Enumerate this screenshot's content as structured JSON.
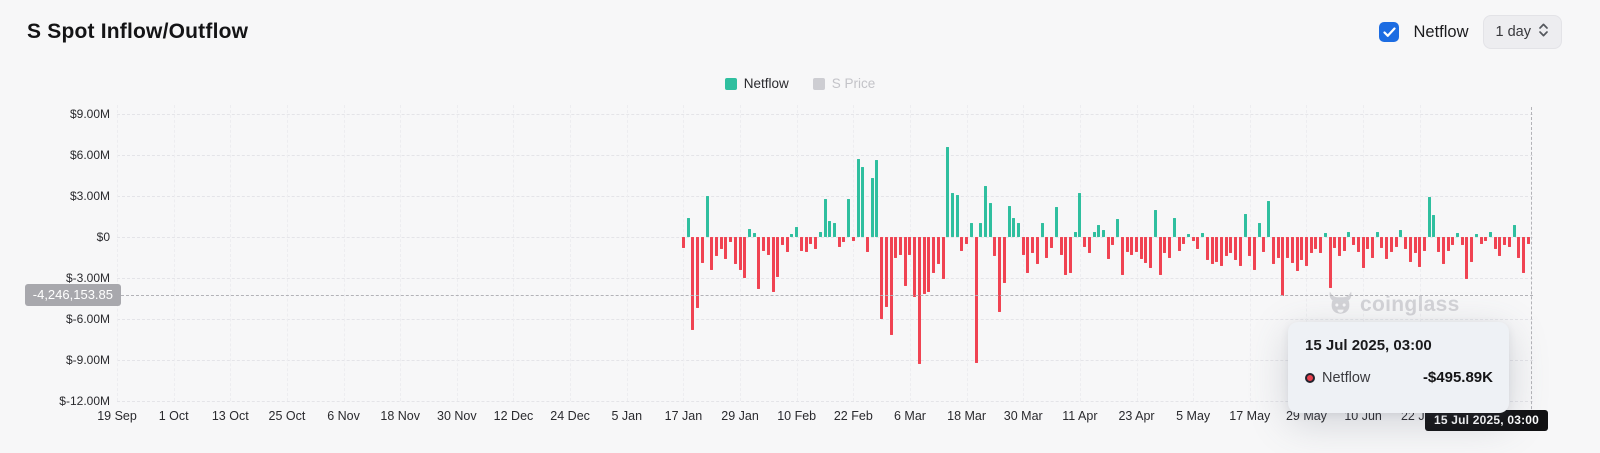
{
  "header": {
    "title": "S Spot Inflow/Outflow",
    "checkbox_label": "Netflow",
    "interval_label": "1 day"
  },
  "legend": {
    "items": [
      {
        "label": "Netflow",
        "color": "#2fbf9f",
        "active": true
      },
      {
        "label": "S Price",
        "color": "#cdcdd2",
        "active": false
      }
    ]
  },
  "watermark": {
    "text": "coinglass"
  },
  "tooltip": {
    "date": "15 Jul 2025, 03:00",
    "series_label": "Netflow",
    "value": "-$495.89K",
    "dot_color": "#e8404d"
  },
  "crosshair": {
    "y_label": "-4,246,153.85",
    "x_label": "15 Jul 2025, 03:00",
    "value_millions": -4.246154
  },
  "colors": {
    "positive": "#2fbf9f",
    "negative": "#f04352",
    "checkbox_blue": "#1c6ce2"
  },
  "chart_data": {
    "type": "bar",
    "title": "S Spot Inflow/Outflow",
    "unit": "USD (millions); positive = inflow (green), negative = outflow (red)",
    "grid": true,
    "legend_position": "top-center",
    "ylim": [
      -12.7,
      9.7
    ],
    "y_axis": [
      {
        "label": "$9.00M",
        "value": 9
      },
      {
        "label": "$6.00M",
        "value": 6
      },
      {
        "label": "$3.00M",
        "value": 3
      },
      {
        "label": "$0",
        "value": 0
      },
      {
        "label": "$-3.00M",
        "value": -3
      },
      {
        "label": "$-6.00M",
        "value": -6
      },
      {
        "label": "$-9.00M",
        "value": -9
      },
      {
        "label": "$-12.00M",
        "value": -12
      }
    ],
    "total_days": 300,
    "x_ticks": [
      {
        "label": "19 Sep",
        "day": 0
      },
      {
        "label": "1 Oct",
        "day": 12
      },
      {
        "label": "13 Oct",
        "day": 24
      },
      {
        "label": "25 Oct",
        "day": 36
      },
      {
        "label": "6 Nov",
        "day": 48
      },
      {
        "label": "18 Nov",
        "day": 60
      },
      {
        "label": "30 Nov",
        "day": 72
      },
      {
        "label": "12 Dec",
        "day": 84
      },
      {
        "label": "24 Dec",
        "day": 96
      },
      {
        "label": "5 Jan",
        "day": 108
      },
      {
        "label": "17 Jan",
        "day": 120
      },
      {
        "label": "29 Jan",
        "day": 132
      },
      {
        "label": "10 Feb",
        "day": 144
      },
      {
        "label": "22 Feb",
        "day": 156
      },
      {
        "label": "6 Mar",
        "day": 168
      },
      {
        "label": "18 Mar",
        "day": 180
      },
      {
        "label": "30 Mar",
        "day": 192
      },
      {
        "label": "11 Apr",
        "day": 204
      },
      {
        "label": "23 Apr",
        "day": 216
      },
      {
        "label": "5 May",
        "day": 228
      },
      {
        "label": "17 May",
        "day": 240
      },
      {
        "label": "29 May",
        "day": 252
      },
      {
        "label": "10 Jun",
        "day": 264
      },
      {
        "label": "22 Jun",
        "day": 276
      }
    ],
    "series": [
      {
        "name": "Netflow",
        "start_day": 120,
        "start_date_label": "17 Jan",
        "values_millions_usd": [
          -0.8,
          1.4,
          -6.8,
          -5.2,
          -1.9,
          3.0,
          -2.4,
          -1.4,
          -0.9,
          -1.6,
          -0.4,
          -2.0,
          -2.4,
          -3.0,
          0.6,
          0.3,
          -3.8,
          -1.0,
          -1.3,
          -4.0,
          -2.9,
          -0.6,
          -1.1,
          0.2,
          0.7,
          -1.0,
          -1.1,
          -0.5,
          -0.9,
          0.4,
          2.8,
          1.2,
          1.0,
          -0.7,
          -0.4,
          2.8,
          -0.3,
          5.7,
          5.1,
          -1.1,
          4.3,
          5.6,
          -6.0,
          -5.1,
          -7.2,
          -1.5,
          -1.3,
          -3.6,
          -1.3,
          -4.4,
          -9.3,
          -4.2,
          -4.0,
          -2.6,
          -2.0,
          -3.1,
          6.6,
          3.2,
          3.1,
          -1.0,
          -0.5,
          1.0,
          -9.2,
          1.0,
          3.7,
          2.5,
          -1.4,
          -5.5,
          -3.4,
          2.3,
          1.4,
          1.0,
          -1.3,
          -2.6,
          -1.2,
          -2.0,
          1.0,
          -1.5,
          -0.8,
          2.2,
          -1.3,
          -2.8,
          -2.6,
          0.4,
          3.2,
          -0.7,
          -1.2,
          0.4,
          0.9,
          0.5,
          -1.6,
          -0.6,
          1.3,
          -2.8,
          -1.1,
          -1.3,
          -1.1,
          -1.6,
          -1.9,
          -2.3,
          2.0,
          -2.8,
          -1.2,
          -1.5,
          1.4,
          -1.0,
          -0.5,
          0.2,
          -0.3,
          -0.9,
          0.3,
          -1.7,
          -2.0,
          -1.8,
          -2.1,
          -1.4,
          -1.2,
          -1.7,
          -2.1,
          1.7,
          -1.4,
          -2.4,
          1.0,
          -1.1,
          2.6,
          -2.0,
          -1.5,
          -4.3,
          -1.5,
          -1.9,
          -2.5,
          -1.7,
          -2.1,
          -1.2,
          -0.9,
          -1.2,
          0.3,
          -3.7,
          -0.8,
          -1.4,
          -1.0,
          0.4,
          -0.6,
          -1.1,
          -2.3,
          -0.9,
          -1.5,
          0.4,
          -0.8,
          -1.6,
          -1.1,
          -0.7,
          0.5,
          -0.9,
          -1.8,
          -1.2,
          -2.2,
          -1.0,
          2.9,
          1.6,
          -1.1,
          -2.0,
          -1.0,
          -0.6,
          0.3,
          -0.6,
          -3.1,
          -1.8,
          0.2,
          -0.5,
          -0.3,
          0.4,
          -0.9,
          -1.4,
          -0.6,
          -0.7,
          0.9,
          -1.5,
          -2.6,
          -0.5
        ]
      }
    ],
    "hover": {
      "day": 299,
      "label": "15 Jul 2025, 03:00",
      "series": "Netflow",
      "value": "-$495.89K",
      "value_millions": -0.49589
    }
  }
}
